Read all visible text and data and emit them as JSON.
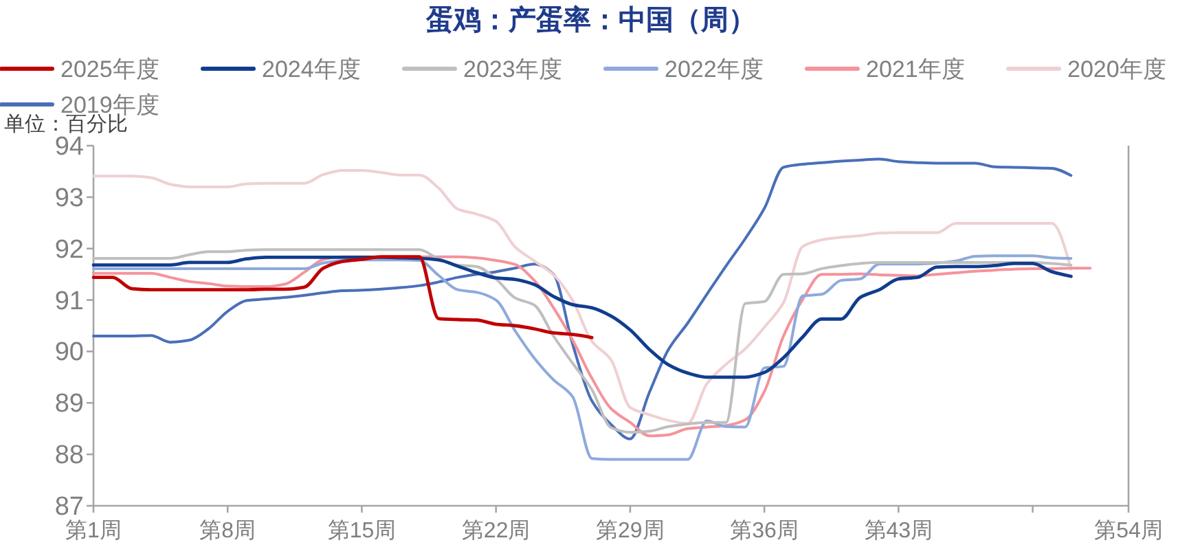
{
  "chart_data": {
    "type": "line",
    "title": "蛋鸡：产蛋率：中国（周）",
    "annotations": [
      "单位：百分比"
    ],
    "legend": "top",
    "categories": [
      "第1周",
      null,
      null,
      null,
      null,
      null,
      null,
      "第8周",
      null,
      null,
      null,
      null,
      null,
      null,
      "第15周",
      null,
      null,
      null,
      null,
      null,
      null,
      "第22周",
      null,
      null,
      null,
      null,
      null,
      null,
      "第29周",
      null,
      null,
      null,
      null,
      null,
      null,
      "第36周",
      null,
      null,
      null,
      null,
      null,
      null,
      "第43周",
      null,
      null,
      null,
      null,
      null,
      null,
      null,
      null,
      null,
      null,
      null,
      "第54周"
    ],
    "ylim": [
      87,
      94
    ],
    "yticks": [
      87,
      88,
      89,
      90,
      91,
      92,
      93,
      94
    ],
    "series": [
      {
        "name": "2025年度",
        "color": "#c00000",
        "values": [
          91.44,
          91.44,
          91.22,
          91.2,
          91.2,
          91.2,
          91.2,
          91.2,
          91.2,
          91.21,
          91.21,
          91.25,
          91.62,
          91.75,
          91.79,
          91.84,
          91.84,
          91.84,
          90.64,
          90.62,
          90.61,
          90.53,
          90.5,
          90.44,
          90.36,
          90.33,
          90.27,
          null,
          null,
          null,
          null,
          null,
          null,
          null,
          null,
          null,
          null,
          null,
          null,
          null,
          null,
          null,
          null,
          null,
          null,
          null,
          null,
          null,
          null,
          null,
          null,
          null,
          null,
          null,
          null
        ]
      },
      {
        "name": "2024年度",
        "color": "#103d8e",
        "values": [
          91.68,
          91.68,
          91.68,
          91.68,
          91.68,
          91.73,
          91.73,
          91.73,
          91.8,
          91.83,
          91.83,
          91.83,
          91.83,
          91.83,
          91.83,
          91.83,
          91.82,
          91.81,
          91.78,
          91.66,
          91.53,
          91.43,
          91.4,
          91.3,
          91.07,
          90.91,
          90.85,
          90.69,
          90.42,
          90.04,
          89.74,
          89.58,
          89.5,
          89.5,
          89.5,
          89.59,
          89.88,
          90.28,
          90.63,
          90.63,
          91.05,
          91.2,
          91.41,
          91.44,
          91.64,
          91.65,
          91.65,
          91.67,
          91.71,
          91.71,
          91.55,
          91.46,
          null,
          null,
          null
        ]
      },
      {
        "name": "2023年度",
        "color": "#bfbfbf",
        "values": [
          91.81,
          91.81,
          91.81,
          91.81,
          91.81,
          91.88,
          91.94,
          91.94,
          91.97,
          91.98,
          91.98,
          91.98,
          91.98,
          91.98,
          91.98,
          91.98,
          91.98,
          91.98,
          91.8,
          91.68,
          91.65,
          91.41,
          91.04,
          90.9,
          90.3,
          89.77,
          89.26,
          88.52,
          88.43,
          88.45,
          88.54,
          88.59,
          88.62,
          88.62,
          90.93,
          90.97,
          91.5,
          91.51,
          91.61,
          91.67,
          91.71,
          91.73,
          91.73,
          91.73,
          91.73,
          91.73,
          91.73,
          91.73,
          91.73,
          91.73,
          91.71,
          91.68,
          null,
          null,
          null
        ]
      },
      {
        "name": "2022年度",
        "color": "#8eaadb",
        "values": [
          91.61,
          91.61,
          91.61,
          91.61,
          91.61,
          91.61,
          91.61,
          91.61,
          91.61,
          91.61,
          91.61,
          91.61,
          91.72,
          91.77,
          91.78,
          91.78,
          91.78,
          91.77,
          91.48,
          91.2,
          91.15,
          91.0,
          90.4,
          89.87,
          89.45,
          89.12,
          87.92,
          87.9,
          87.9,
          87.9,
          87.9,
          87.9,
          88.65,
          88.54,
          88.53,
          89.68,
          89.71,
          91.08,
          91.11,
          91.38,
          91.41,
          91.7,
          91.7,
          91.7,
          91.72,
          91.76,
          91.85,
          91.86,
          91.86,
          91.86,
          91.82,
          91.81,
          null,
          null,
          null
        ]
      },
      {
        "name": "2021年度",
        "color": "#f4939b",
        "values": [
          91.52,
          91.52,
          91.52,
          91.52,
          91.44,
          91.36,
          91.32,
          91.27,
          91.26,
          91.26,
          91.31,
          91.54,
          91.79,
          91.84,
          91.84,
          91.84,
          91.84,
          91.84,
          91.84,
          91.84,
          91.82,
          91.77,
          91.69,
          91.38,
          90.85,
          90.22,
          89.48,
          88.89,
          88.62,
          88.36,
          88.38,
          88.5,
          88.53,
          88.56,
          88.67,
          89.22,
          90.3,
          91.01,
          91.5,
          91.5,
          91.51,
          91.49,
          91.48,
          91.47,
          91.5,
          91.53,
          91.56,
          91.58,
          91.6,
          91.61,
          91.61,
          91.62,
          91.62,
          null,
          null
        ]
      },
      {
        "name": "2020年度",
        "color": "#efd0d2",
        "values": [
          93.41,
          93.41,
          93.41,
          93.38,
          93.25,
          93.2,
          93.2,
          93.2,
          93.26,
          93.27,
          93.27,
          93.27,
          93.44,
          93.52,
          93.52,
          93.48,
          93.43,
          93.43,
          93.18,
          92.77,
          92.67,
          92.53,
          92.03,
          91.76,
          91.49,
          90.99,
          90.2,
          89.84,
          88.91,
          88.77,
          88.66,
          88.6,
          89.37,
          89.75,
          90.05,
          90.47,
          90.95,
          92.04,
          92.17,
          92.22,
          92.25,
          92.3,
          92.31,
          92.31,
          92.31,
          92.49,
          92.49,
          92.49,
          92.49,
          92.49,
          92.49,
          91.6,
          null,
          null,
          null
        ]
      },
      {
        "name": "2019年度",
        "color": "#4a6fb8",
        "values": [
          90.3,
          90.3,
          90.3,
          90.31,
          90.18,
          90.22,
          90.44,
          90.78,
          90.99,
          91.02,
          91.05,
          91.09,
          91.14,
          91.18,
          91.19,
          91.21,
          91.24,
          91.28,
          91.35,
          91.44,
          91.5,
          91.55,
          91.62,
          91.7,
          91.5,
          90.14,
          89.04,
          88.58,
          88.3,
          89.2,
          90.04,
          90.55,
          91.11,
          91.66,
          92.19,
          92.78,
          93.58,
          93.64,
          93.67,
          93.7,
          93.72,
          93.74,
          93.69,
          93.67,
          93.66,
          93.66,
          93.66,
          93.59,
          93.58,
          93.57,
          93.56,
          93.42,
          null,
          null,
          null
        ]
      }
    ]
  }
}
